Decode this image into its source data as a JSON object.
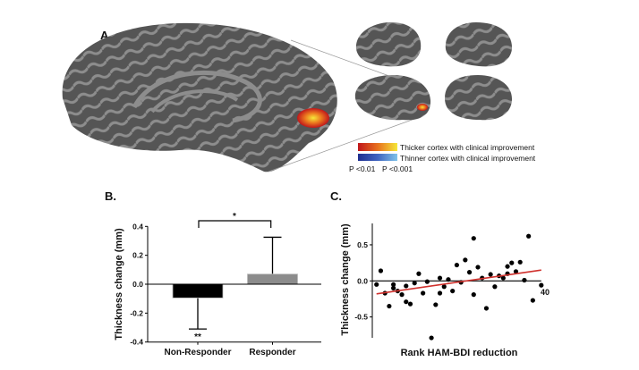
{
  "panel_a": {
    "label": "A.",
    "legend": {
      "thicker": "Thicker cortex with clinical improvement",
      "thinner": "Thinner cortex with clinical improvement",
      "p_low": "P <0.01",
      "p_high": "P <0.001"
    },
    "colors": {
      "cortex_light": "#8a8a8a",
      "cortex_dark": "#4a4a4a",
      "hot_start": "#c0161b",
      "hot_end": "#f5e83a",
      "cold_start": "#1f2f8f",
      "cold_end": "#7fc3ea"
    }
  },
  "chart_data": [
    {
      "type": "bar",
      "panel_label": "B.",
      "title": "",
      "xlabel": "",
      "ylabel": "Thickness change (mm)",
      "categories": [
        "Non-Responder",
        "Responder"
      ],
      "values": [
        -0.095,
        0.07
      ],
      "error_bars": [
        -0.31,
        0.325
      ],
      "colors": [
        "#000000",
        "#8c8c8c"
      ],
      "ylim": [
        -0.4,
        0.4
      ],
      "yticks": [
        "0.4",
        "0.2",
        "0.0",
        "-0.2",
        "-0.4"
      ],
      "annotations": {
        "bracket": "*",
        "non_responder": "**"
      }
    },
    {
      "type": "scatter",
      "panel_label": "C.",
      "title": "",
      "xlabel": "Rank HAM-BDI reduction",
      "ylabel": "Thickness change (mm)",
      "xlim": [
        0,
        40
      ],
      "ylim": [
        -0.8,
        0.8
      ],
      "yticks": [
        "0.5",
        "0.0",
        "-0.5"
      ],
      "xtick_label": "40",
      "points": [
        [
          1,
          -0.05
        ],
        [
          2,
          0.14
        ],
        [
          3,
          -0.17
        ],
        [
          4,
          -0.35
        ],
        [
          5,
          -0.05
        ],
        [
          5,
          -0.1
        ],
        [
          6,
          -0.14
        ],
        [
          7,
          -0.19
        ],
        [
          8,
          -0.07
        ],
        [
          8,
          -0.29
        ],
        [
          9,
          -0.32
        ],
        [
          10,
          -0.03
        ],
        [
          11,
          0.1
        ],
        [
          12,
          -0.17
        ],
        [
          13,
          -0.01
        ],
        [
          14,
          -0.79
        ],
        [
          15,
          -0.33
        ],
        [
          16,
          0.04
        ],
        [
          16,
          -0.17
        ],
        [
          17,
          -0.08
        ],
        [
          18,
          0.02
        ],
        [
          19,
          -0.14
        ],
        [
          20,
          0.22
        ],
        [
          21,
          -0.02
        ],
        [
          22,
          0.29
        ],
        [
          23,
          0.12
        ],
        [
          24,
          0.59
        ],
        [
          24,
          -0.19
        ],
        [
          25,
          0.19
        ],
        [
          26,
          0.04
        ],
        [
          27,
          -0.38
        ],
        [
          28,
          0.09
        ],
        [
          29,
          -0.08
        ],
        [
          30,
          0.07
        ],
        [
          31,
          0.04
        ],
        [
          32,
          0.2
        ],
        [
          32,
          0.1
        ],
        [
          33,
          0.25
        ],
        [
          34,
          0.13
        ],
        [
          35,
          0.26
        ],
        [
          36,
          0.01
        ],
        [
          37,
          0.62
        ],
        [
          38,
          -0.27
        ],
        [
          40,
          -0.06
        ]
      ],
      "regression": {
        "x": [
          1,
          40
        ],
        "y": [
          -0.18,
          0.15
        ],
        "color": "#d0312d"
      }
    }
  ]
}
